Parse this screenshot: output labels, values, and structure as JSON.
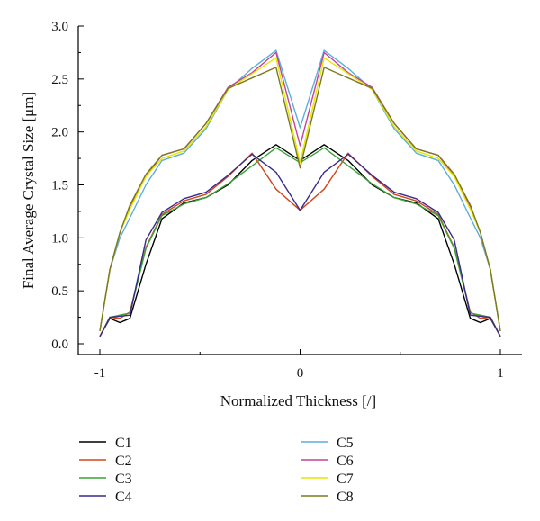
{
  "chart_data": {
    "type": "line",
    "xlabel": "Normalized Thickness [/]",
    "ylabel": "Final Average Crystal Size [μm]",
    "xlim": [
      -1.0,
      1.0
    ],
    "ylim": [
      0.0,
      3.0
    ],
    "xticks": [
      -1,
      0,
      1
    ],
    "xtick_labels": [
      "-1",
      "0",
      "1"
    ],
    "yticks": [
      0.0,
      0.5,
      1.0,
      1.5,
      2.0,
      2.5,
      3.0
    ],
    "ytick_labels": [
      "0.0",
      "0.5",
      "1.0",
      "1.5",
      "2.0",
      "2.5",
      "3.0"
    ],
    "grid": false,
    "legend_position": "bottom",
    "x": [
      -1.0,
      -0.95,
      -0.9,
      -0.85,
      -0.77,
      -0.69,
      -0.58,
      -0.47,
      -0.36,
      -0.24,
      -0.12,
      0.0,
      0.12,
      0.24,
      0.36,
      0.47,
      0.58,
      0.69,
      0.77,
      0.85,
      0.9,
      0.95,
      1.0
    ],
    "series": [
      {
        "name": "C1",
        "color": "#000000",
        "values": [
          0.07,
          0.24,
          0.2,
          0.24,
          0.75,
          1.18,
          1.33,
          1.38,
          1.5,
          1.73,
          1.88,
          1.73,
          1.88,
          1.73,
          1.5,
          1.38,
          1.33,
          1.18,
          0.75,
          0.24,
          0.2,
          0.24,
          0.07
        ]
      },
      {
        "name": "C2",
        "color": "#d2471c",
        "values": [
          0.07,
          0.25,
          0.24,
          0.3,
          0.91,
          1.22,
          1.35,
          1.41,
          1.58,
          1.8,
          1.46,
          1.26,
          1.46,
          1.8,
          1.58,
          1.41,
          1.35,
          1.22,
          0.91,
          0.3,
          0.24,
          0.25,
          0.07
        ]
      },
      {
        "name": "C3",
        "color": "#3aa335",
        "values": [
          0.07,
          0.25,
          0.27,
          0.29,
          0.9,
          1.21,
          1.32,
          1.38,
          1.51,
          1.68,
          1.85,
          1.71,
          1.85,
          1.68,
          1.51,
          1.38,
          1.32,
          1.21,
          0.9,
          0.29,
          0.27,
          0.25,
          0.07
        ]
      },
      {
        "name": "C4",
        "color": "#3a2a8c",
        "values": [
          0.07,
          0.25,
          0.26,
          0.27,
          0.98,
          1.24,
          1.37,
          1.43,
          1.59,
          1.79,
          1.62,
          1.26,
          1.62,
          1.79,
          1.59,
          1.43,
          1.37,
          1.24,
          0.98,
          0.27,
          0.26,
          0.25,
          0.07
        ]
      },
      {
        "name": "C5",
        "color": "#5aaedb",
        "values": [
          0.12,
          0.7,
          1.0,
          1.19,
          1.5,
          1.73,
          1.8,
          2.03,
          2.4,
          2.6,
          2.77,
          2.04,
          2.77,
          2.6,
          2.4,
          2.03,
          1.8,
          1.73,
          1.5,
          1.19,
          1.0,
          0.7,
          0.12
        ]
      },
      {
        "name": "C6",
        "color": "#c1439a",
        "values": [
          0.12,
          0.7,
          1.05,
          1.29,
          1.58,
          1.78,
          1.84,
          2.08,
          2.42,
          2.56,
          2.75,
          1.87,
          2.75,
          2.56,
          2.42,
          2.08,
          1.84,
          1.78,
          1.58,
          1.29,
          1.05,
          0.7,
          0.12
        ]
      },
      {
        "name": "C7",
        "color": "#e6e600",
        "values": [
          0.12,
          0.7,
          1.05,
          1.27,
          1.58,
          1.75,
          1.82,
          2.05,
          2.4,
          2.55,
          2.7,
          1.71,
          2.7,
          2.55,
          2.4,
          2.05,
          1.82,
          1.75,
          1.58,
          1.27,
          1.05,
          0.7,
          0.12
        ]
      },
      {
        "name": "C8",
        "color": "#7b7a1e",
        "values": [
          0.12,
          0.7,
          1.05,
          1.31,
          1.6,
          1.78,
          1.84,
          2.08,
          2.41,
          2.51,
          2.61,
          1.66,
          2.61,
          2.51,
          2.41,
          2.08,
          1.84,
          1.78,
          1.6,
          1.31,
          1.05,
          0.7,
          0.12
        ]
      }
    ]
  }
}
